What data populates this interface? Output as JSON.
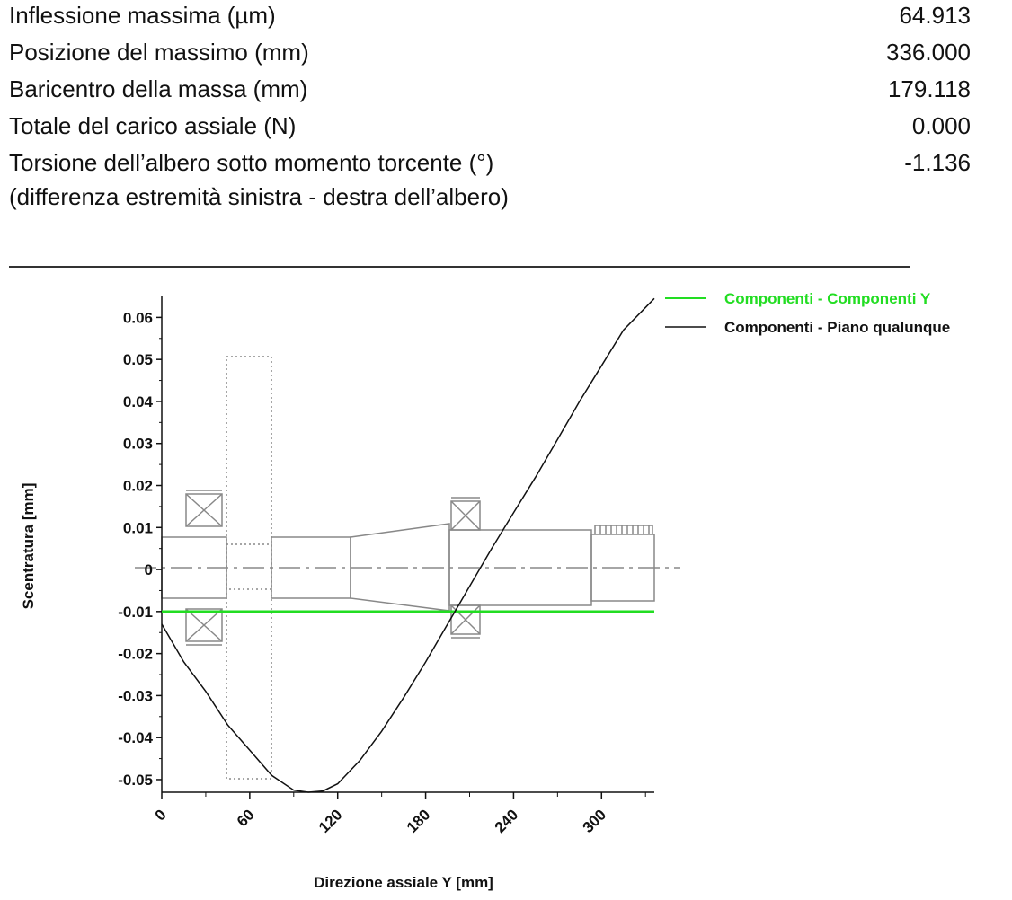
{
  "results": [
    {
      "label": "Inflessione massima (µm)",
      "value": "64.913"
    },
    {
      "label": "Posizione del massimo (mm)",
      "value": "336.000"
    },
    {
      "label": "Baricentro della massa (mm)",
      "value": "179.118"
    },
    {
      "label": "Totale del carico assiale (N)",
      "value": "0.000"
    },
    {
      "label": "Torsione dell’albero sotto momento torcente (°)",
      "value": "-1.136"
    }
  ],
  "note": "(differenza estremità sinistra - destra dell’albero)",
  "chart_data": {
    "type": "line",
    "xlabel": "Direzione assiale Y [mm]",
    "ylabel": "Scentratura [mm]",
    "xlim": [
      0,
      336
    ],
    "ylim": [
      -0.053,
      0.065
    ],
    "xticks": [
      0,
      60,
      120,
      180,
      240,
      300
    ],
    "yticks": [
      0.06,
      0.05,
      0.04,
      0.03,
      0.02,
      0.01,
      0,
      -0.01,
      -0.02,
      -0.03,
      -0.04,
      -0.05
    ],
    "ytick_labels": [
      "0.06",
      "0.05",
      "0.04",
      "0.03",
      "0.02",
      "0.01",
      "0",
      "-0.01",
      "-0.02",
      "-0.03",
      "-0.04",
      "-0.05"
    ],
    "legend_position": "top-right",
    "series": [
      {
        "name": "Componenti - Componenti Y",
        "color": "#22dd22",
        "x": [
          0,
          336
        ],
        "y": [
          -0.01,
          -0.01
        ]
      },
      {
        "name": "Componenti - Piano qualunque",
        "color": "#111111",
        "x": [
          0,
          15,
          30,
          45,
          60,
          75,
          90,
          100,
          110,
          120,
          135,
          150,
          165,
          180,
          195,
          210,
          225,
          240,
          255,
          270,
          285,
          300,
          315,
          336
        ],
        "y": [
          -0.013,
          -0.022,
          -0.029,
          -0.037,
          -0.043,
          -0.049,
          -0.0525,
          -0.053,
          -0.0527,
          -0.051,
          -0.0455,
          -0.0385,
          -0.0305,
          -0.022,
          -0.013,
          -0.004,
          0.005,
          0.0135,
          0.022,
          0.031,
          0.04,
          0.0485,
          0.057,
          0.0645
        ]
      }
    ]
  }
}
